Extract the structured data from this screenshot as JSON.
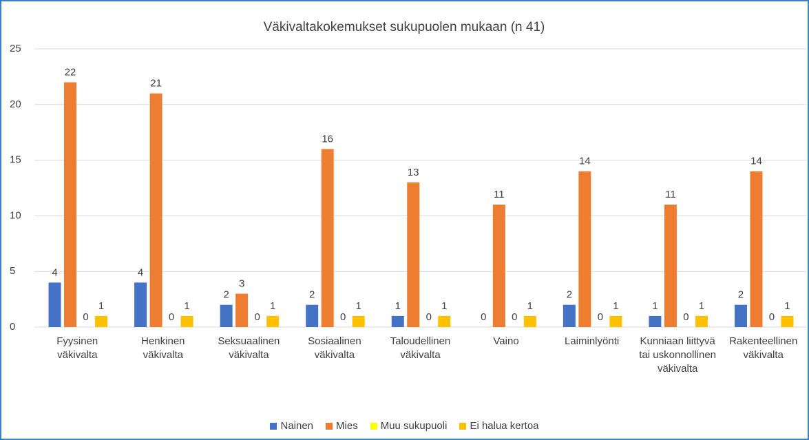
{
  "chart_data": {
    "type": "bar",
    "title": "Väkivaltakokemukset sukupuolen mukaan (n 41)",
    "categories": [
      "Fyysinen väkivalta",
      "Henkinen väkivalta",
      "Seksuaalinen väkivalta",
      "Sosiaalinen väkivalta",
      "Taloudellinen väkivalta",
      "Vaino",
      "Laiminlyönti",
      "Kunniaan liittyvä tai uskonnollinen väkivalta",
      "Rakenteellinen väkivalta"
    ],
    "series": [
      {
        "name": "Nainen",
        "color": "#4472c4",
        "values": [
          4,
          4,
          2,
          2,
          1,
          0,
          2,
          1,
          2
        ]
      },
      {
        "name": "Mies",
        "color": "#ed7d31",
        "values": [
          22,
          21,
          3,
          16,
          13,
          11,
          14,
          11,
          14
        ]
      },
      {
        "name": "Muu sukupuoli",
        "color": "#ffff00",
        "values": [
          0,
          0,
          0,
          0,
          0,
          0,
          0,
          0,
          0
        ]
      },
      {
        "name": "Ei halua kertoa",
        "color": "#ffc000",
        "values": [
          1,
          1,
          1,
          1,
          1,
          1,
          1,
          1,
          1
        ]
      }
    ],
    "ylim": [
      0,
      25
    ],
    "yticks": [
      0,
      5,
      10,
      15,
      20,
      25
    ],
    "grid": true,
    "legend": "bottom"
  }
}
